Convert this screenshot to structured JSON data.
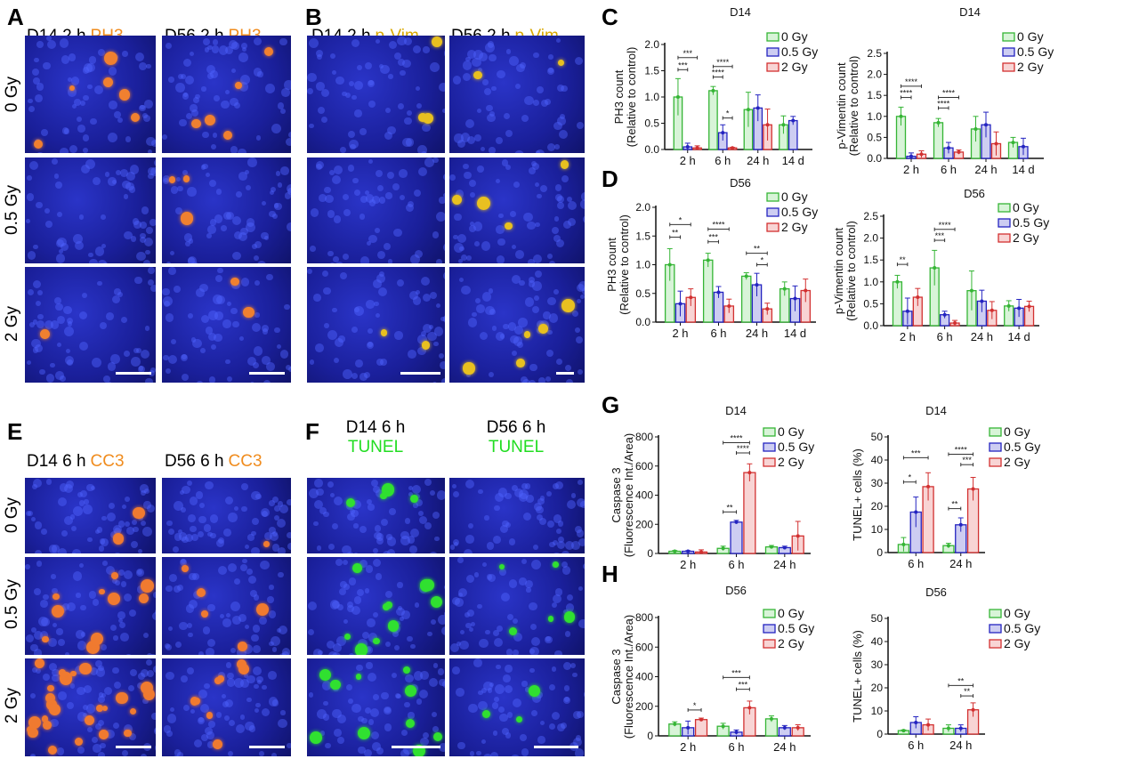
{
  "panels": {
    "A": {
      "letter": "A",
      "headers": [
        {
          "time": "D14 2 h",
          "stain": "PH3"
        },
        {
          "time": "D56 2 h",
          "stain": "PH3"
        }
      ],
      "stain_color": "#f08c1e"
    },
    "B": {
      "letter": "B",
      "headers": [
        {
          "time": "D14 2 h",
          "stain": "p-Vim"
        },
        {
          "time": "D56 2 h",
          "stain": "p-Vim"
        }
      ],
      "stain_color": "#d9a800"
    },
    "C": {
      "letter": "C"
    },
    "D": {
      "letter": "D"
    },
    "E": {
      "letter": "E",
      "headers": [
        {
          "time": "D14 6 h",
          "stain": "CC3"
        },
        {
          "time": "D56 6 h",
          "stain": "CC3"
        }
      ],
      "stain_color": "#f08c1e"
    },
    "F": {
      "letter": "F",
      "headers": [
        {
          "time": "D14 6 h",
          "stain": "TUNEL"
        },
        {
          "time": "D56 6 h",
          "stain": "TUNEL"
        }
      ],
      "stain_color": "#22dd22"
    },
    "G": {
      "letter": "G"
    },
    "H": {
      "letter": "H"
    }
  },
  "row_labels": [
    "0 Gy",
    "0.5 Gy",
    "2 Gy"
  ],
  "colors": {
    "0 Gy": {
      "stroke": "#35b535",
      "fill": "#d8f4d8"
    },
    "0.5 Gy": {
      "stroke": "#2424c0",
      "fill": "#cdcdf2"
    },
    "2 Gy": {
      "stroke": "#d23030",
      "fill": "#f8d4d4"
    }
  },
  "chart_data": [
    {
      "id": "C1",
      "type": "bar",
      "title": "D14",
      "ylabel": [
        "PH3 count",
        "(Relative to control)"
      ],
      "ylim": [
        0,
        2.0
      ],
      "yticks": [
        "0.0",
        "0.5",
        "1.0",
        "1.5",
        "2.0"
      ],
      "legend": "top-right",
      "categories": [
        "2 h",
        "6 h",
        "24 h",
        "14 d"
      ],
      "series": [
        {
          "name": "0 Gy",
          "values": [
            1.0,
            1.12,
            0.76,
            0.47
          ],
          "sd": [
            0.35,
            0.08,
            0.33,
            0.17
          ]
        },
        {
          "name": "0.5 Gy",
          "values": [
            0.05,
            0.32,
            0.79,
            0.55
          ],
          "sd": [
            0.07,
            0.15,
            0.25,
            0.08
          ]
        },
        {
          "name": "2 Gy",
          "values": [
            0.03,
            0.03,
            0.47,
            null
          ],
          "sd": [
            0.04,
            0.01,
            0.3,
            null
          ]
        }
      ],
      "annotations": [
        {
          "group": 0,
          "from": 0,
          "to": 2,
          "label": "***",
          "y": 1.75
        },
        {
          "group": 0,
          "from": 0,
          "to": 1,
          "label": "***",
          "y": 1.52
        },
        {
          "group": 1,
          "from": 0,
          "to": 2,
          "label": "****",
          "y": 1.58
        },
        {
          "group": 1,
          "from": 0,
          "to": 1,
          "label": "****",
          "y": 1.38
        },
        {
          "group": 1,
          "from": 1,
          "to": 2,
          "label": "*",
          "y": 0.6
        }
      ]
    },
    {
      "id": "C2",
      "type": "bar",
      "title": "D14",
      "ylabel": [
        "p-Vimentin count",
        "(Relative to control)"
      ],
      "ylim": [
        0,
        2.5
      ],
      "yticks": [
        "0.0",
        "0.5",
        "1.0",
        "1.5",
        "2.0",
        "2.5"
      ],
      "legend": "top-right",
      "categories": [
        "2 h",
        "6 h",
        "24 h",
        "14 d"
      ],
      "series": [
        {
          "name": "0 Gy",
          "values": [
            1.0,
            0.85,
            0.7,
            0.38
          ],
          "sd": [
            0.22,
            0.1,
            0.3,
            0.12
          ]
        },
        {
          "name": "0.5 Gy",
          "values": [
            0.05,
            0.25,
            0.8,
            0.28
          ],
          "sd": [
            0.08,
            0.13,
            0.3,
            0.2
          ]
        },
        {
          "name": "2 Gy",
          "values": [
            0.1,
            0.15,
            0.35,
            null
          ],
          "sd": [
            0.08,
            0.05,
            0.28,
            null
          ]
        }
      ],
      "annotations": [
        {
          "group": 0,
          "from": 0,
          "to": 2,
          "label": "****",
          "y": 1.72
        },
        {
          "group": 0,
          "from": 0,
          "to": 1,
          "label": "****",
          "y": 1.45
        },
        {
          "group": 1,
          "from": 0,
          "to": 2,
          "label": "****",
          "y": 1.45
        },
        {
          "group": 1,
          "from": 0,
          "to": 1,
          "label": "****",
          "y": 1.2
        }
      ]
    },
    {
      "id": "D1",
      "type": "bar",
      "title": "D56",
      "ylabel": [
        "PH3 count",
        "(Relative to control)"
      ],
      "ylim": [
        0,
        2.0
      ],
      "yticks": [
        "0.0",
        "0.5",
        "1.0",
        "1.5",
        "2.0"
      ],
      "legend": "top-right",
      "categories": [
        "2 h",
        "6 h",
        "24 h",
        "14 d"
      ],
      "series": [
        {
          "name": "0 Gy",
          "values": [
            1.0,
            1.08,
            0.8,
            0.58
          ],
          "sd": [
            0.28,
            0.12,
            0.06,
            0.12
          ]
        },
        {
          "name": "0.5 Gy",
          "values": [
            0.32,
            0.52,
            0.65,
            0.41
          ],
          "sd": [
            0.22,
            0.1,
            0.2,
            0.22
          ]
        },
        {
          "name": "2 Gy",
          "values": [
            0.43,
            0.28,
            0.23,
            0.55
          ],
          "sd": [
            0.15,
            0.12,
            0.1,
            0.2
          ]
        }
      ],
      "annotations": [
        {
          "group": 0,
          "from": 0,
          "to": 2,
          "label": "*",
          "y": 1.7
        },
        {
          "group": 0,
          "from": 0,
          "to": 1,
          "label": "**",
          "y": 1.48
        },
        {
          "group": 1,
          "from": 0,
          "to": 2,
          "label": "****",
          "y": 1.62
        },
        {
          "group": 1,
          "from": 0,
          "to": 1,
          "label": "***",
          "y": 1.4
        },
        {
          "group": 2,
          "from": 0,
          "to": 2,
          "label": "**",
          "y": 1.2
        },
        {
          "group": 2,
          "from": 1,
          "to": 2,
          "label": "*",
          "y": 1.0
        }
      ]
    },
    {
      "id": "D2",
      "type": "bar",
      "title": "D56",
      "ylabel": [
        "p-Vimentin count",
        "(Relative to control)"
      ],
      "ylim": [
        0,
        2.5
      ],
      "yticks": [
        "0.0",
        "0.5",
        "1.0",
        "1.5",
        "2.0",
        "2.5"
      ],
      "legend": "top-right",
      "categories": [
        "2 h",
        "6 h",
        "24 h",
        "14 d"
      ],
      "series": [
        {
          "name": "0 Gy",
          "values": [
            1.0,
            1.32,
            0.8,
            0.45
          ],
          "sd": [
            0.15,
            0.4,
            0.45,
            0.12
          ]
        },
        {
          "name": "0.5 Gy",
          "values": [
            0.33,
            0.25,
            0.56,
            0.4
          ],
          "sd": [
            0.3,
            0.08,
            0.25,
            0.2
          ]
        },
        {
          "name": "2 Gy",
          "values": [
            0.65,
            0.06,
            0.35,
            0.44
          ],
          "sd": [
            0.2,
            0.06,
            0.2,
            0.12
          ]
        }
      ],
      "annotations": [
        {
          "group": 0,
          "from": 0,
          "to": 1,
          "label": "**",
          "y": 1.4
        },
        {
          "group": 1,
          "from": 0,
          "to": 2,
          "label": "****",
          "y": 2.2
        },
        {
          "group": 1,
          "from": 0,
          "to": 1,
          "label": "***",
          "y": 1.95
        }
      ]
    },
    {
      "id": "G1",
      "type": "bar",
      "title": "D14",
      "ylabel": [
        "Caspase 3",
        "(Fluorescence Int./Area)"
      ],
      "ylim": [
        0,
        800
      ],
      "yticks": [
        "0",
        "200",
        "400",
        "600",
        "800"
      ],
      "legend": "top-right",
      "categories": [
        "2 h",
        "6 h",
        "24 h"
      ],
      "series": [
        {
          "name": "0 Gy",
          "values": [
            15,
            35,
            45
          ],
          "sd": [
            5,
            15,
            10
          ]
        },
        {
          "name": "0.5 Gy",
          "values": [
            15,
            215,
            40
          ],
          "sd": [
            4,
            12,
            10
          ]
        },
        {
          "name": "2 Gy",
          "values": [
            10,
            555,
            120
          ],
          "sd": [
            15,
            60,
            100
          ]
        }
      ],
      "annotations": [
        {
          "group": 1,
          "from": 0,
          "to": 2,
          "label": "****",
          "y": 760
        },
        {
          "group": 1,
          "from": 1,
          "to": 2,
          "label": "****",
          "y": 690
        },
        {
          "group": 1,
          "from": 0,
          "to": 1,
          "label": "**",
          "y": 285
        }
      ]
    },
    {
      "id": "G2",
      "type": "bar",
      "title": "D14",
      "ylabel": [
        "TUNEL+ cells (%)"
      ],
      "ylim": [
        0,
        50
      ],
      "yticks": [
        "0",
        "10",
        "20",
        "30",
        "40",
        "50"
      ],
      "legend": "top-right",
      "categories": [
        "6 h",
        "24 h"
      ],
      "series": [
        {
          "name": "0 Gy",
          "values": [
            3.5,
            3
          ],
          "sd": [
            3,
            1
          ]
        },
        {
          "name": "0.5 Gy",
          "values": [
            17.5,
            12
          ],
          "sd": [
            6.5,
            3
          ]
        },
        {
          "name": "2 Gy",
          "values": [
            28.5,
            27.5
          ],
          "sd": [
            6,
            5
          ]
        }
      ],
      "annotations": [
        {
          "group": 0,
          "from": 0,
          "to": 2,
          "label": "***",
          "y": 41
        },
        {
          "group": 0,
          "from": 0,
          "to": 1,
          "label": "*",
          "y": 30.5
        },
        {
          "group": 1,
          "from": 0,
          "to": 2,
          "label": "****",
          "y": 42.5
        },
        {
          "group": 1,
          "from": 1,
          "to": 2,
          "label": "***",
          "y": 38
        },
        {
          "group": 1,
          "from": 0,
          "to": 1,
          "label": "**",
          "y": 19
        }
      ]
    },
    {
      "id": "H1",
      "type": "bar",
      "title": "D56",
      "ylabel": [
        "Caspase 3",
        "(Fluorescence Int./Area)"
      ],
      "ylim": [
        0,
        800
      ],
      "yticks": [
        "0",
        "200",
        "400",
        "600",
        "800"
      ],
      "legend": "top-right",
      "categories": [
        "2 h",
        "6 h",
        "24 h"
      ],
      "series": [
        {
          "name": "0 Gy",
          "values": [
            80,
            65,
            115
          ],
          "sd": [
            15,
            20,
            20
          ]
        },
        {
          "name": "0.5 Gy",
          "values": [
            55,
            25,
            55
          ],
          "sd": [
            45,
            15,
            15
          ]
        },
        {
          "name": "2 Gy",
          "values": [
            110,
            190,
            55
          ],
          "sd": [
            10,
            45,
            20
          ]
        }
      ],
      "annotations": [
        {
          "group": 0,
          "from": 1,
          "to": 2,
          "label": "*",
          "y": 175
        },
        {
          "group": 1,
          "from": 0,
          "to": 2,
          "label": "***",
          "y": 395
        },
        {
          "group": 1,
          "from": 1,
          "to": 2,
          "label": "***",
          "y": 315
        }
      ]
    },
    {
      "id": "H2",
      "type": "bar",
      "title": "D56",
      "ylabel": [
        "TUNEL+ cells (%)"
      ],
      "ylim": [
        0,
        50
      ],
      "yticks": [
        "0",
        "10",
        "20",
        "30",
        "40",
        "50"
      ],
      "legend": "top-right",
      "categories": [
        "6 h",
        "24 h"
      ],
      "series": [
        {
          "name": "0 Gy",
          "values": [
            1.5,
            2.5
          ],
          "sd": [
            0.3,
            1.5
          ]
        },
        {
          "name": "0.5 Gy",
          "values": [
            5,
            2.5
          ],
          "sd": [
            2.5,
            1.5
          ]
        },
        {
          "name": "2 Gy",
          "values": [
            4,
            10.5
          ],
          "sd": [
            2.5,
            3
          ]
        }
      ],
      "annotations": [
        {
          "group": 1,
          "from": 0,
          "to": 2,
          "label": "**",
          "y": 21
        },
        {
          "group": 1,
          "from": 1,
          "to": 2,
          "label": "**",
          "y": 16.5
        }
      ]
    }
  ]
}
